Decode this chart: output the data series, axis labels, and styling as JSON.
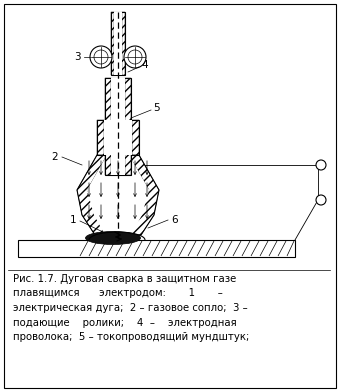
{
  "bg_color": "#ffffff",
  "fig_width": 3.4,
  "fig_height": 3.92,
  "dpi": 100,
  "border": [
    4,
    4,
    332,
    384
  ],
  "caption_lines": [
    "Рис. 1.7. Дуговая сварка в защитном газе",
    "плавящимся      электродом:       1       –",
    "электрическая дуга;  2 – газовое сопло;  3 –",
    "подающие    ролики;    4  –    электродная",
    "проволока;  5 – токопроводящий мундштук;"
  ]
}
